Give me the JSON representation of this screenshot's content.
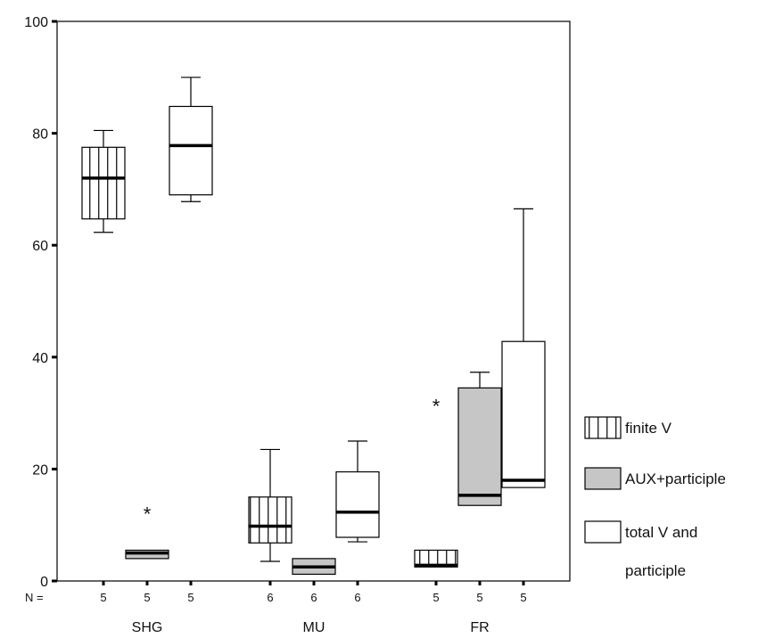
{
  "chart_data": {
    "type": "boxplot",
    "title": "",
    "xlabel": "",
    "ylabel": "",
    "ylim": [
      0,
      100
    ],
    "yticks": [
      0,
      20,
      40,
      60,
      80,
      100
    ],
    "grid": false,
    "legend_position": "right",
    "n_label": "N =",
    "categories": [
      "SHG",
      "MU",
      "FR"
    ],
    "series": [
      {
        "name": "finite V",
        "fill": "hatched",
        "boxes": [
          {
            "category": "SHG",
            "n": "5",
            "min": 62.3,
            "q1": 64.7,
            "median": 72.0,
            "q3": 77.5,
            "max": 80.5,
            "outliers": []
          },
          {
            "category": "MU",
            "n": "6",
            "min": 3.5,
            "q1": 6.8,
            "median": 9.8,
            "q3": 15.0,
            "max": 23.5,
            "outliers": []
          },
          {
            "category": "FR",
            "n": "5",
            "min": 2.5,
            "q1": 2.5,
            "median": 2.8,
            "q3": 5.5,
            "max": 5.5,
            "outliers": [
              31.8
            ]
          }
        ]
      },
      {
        "name": "AUX+participle",
        "fill": "#c6c6c6",
        "boxes": [
          {
            "category": "SHG",
            "n": "5",
            "min": 4.0,
            "q1": 4.0,
            "median": 5.0,
            "q3": 5.5,
            "max": 5.5,
            "outliers": [
              12.5
            ]
          },
          {
            "category": "MU",
            "n": "6",
            "min": 1.2,
            "q1": 1.2,
            "median": 2.5,
            "q3": 4.0,
            "max": 4.0,
            "outliers": []
          },
          {
            "category": "FR",
            "n": "5",
            "min": 13.5,
            "q1": 13.5,
            "median": 15.3,
            "q3": 34.5,
            "max": 37.3,
            "outliers": []
          }
        ]
      },
      {
        "name": "total V and participle",
        "fill": "#ffffff",
        "boxes": [
          {
            "category": "SHG",
            "n": "5",
            "min": 67.8,
            "q1": 69.0,
            "median": 77.8,
            "q3": 84.8,
            "max": 90.0,
            "outliers": []
          },
          {
            "category": "MU",
            "n": "6",
            "min": 7.0,
            "q1": 7.8,
            "median": 12.3,
            "q3": 19.5,
            "max": 25.0,
            "outliers": []
          },
          {
            "category": "FR",
            "n": "5",
            "min": 16.7,
            "q1": 16.7,
            "median": 18.0,
            "q3": 42.8,
            "max": 66.5,
            "outliers": []
          }
        ]
      }
    ],
    "legend": [
      {
        "label": "finite V",
        "fill": "hatched"
      },
      {
        "label": "AUX+participle",
        "fill": "#c6c6c6"
      },
      {
        "label": "total V and",
        "fill": "#ffffff"
      },
      {
        "label": "participle",
        "fill": "none"
      }
    ]
  }
}
